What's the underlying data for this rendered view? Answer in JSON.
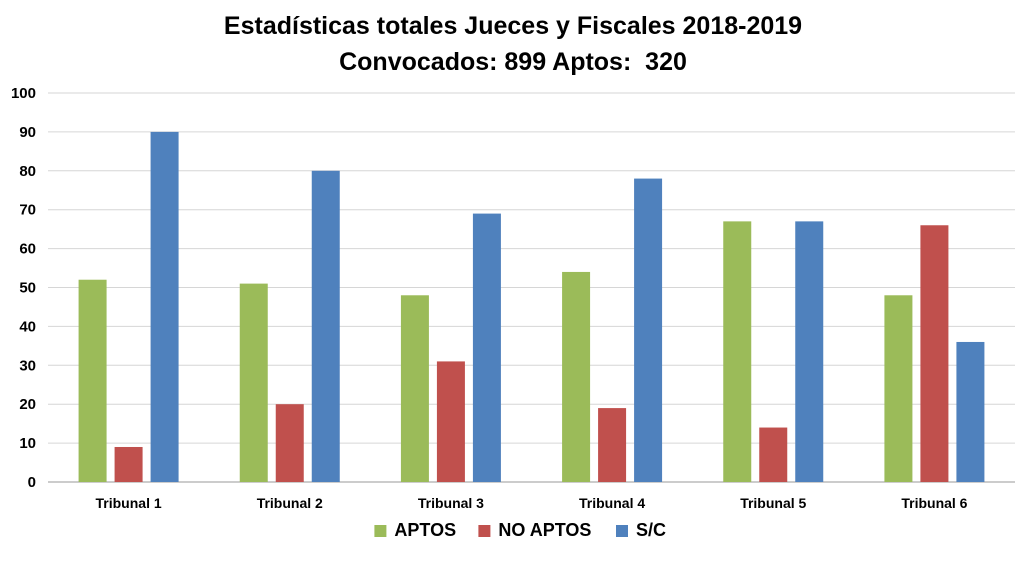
{
  "chart_data": {
    "type": "bar",
    "title": "Estadísticas totales Jueces y Fiscales 2018-2019",
    "subtitle": "Convocados: 899 Aptos:  320",
    "xlabel": "",
    "ylabel": "",
    "ylim": [
      0,
      100
    ],
    "yticks": [
      0,
      10,
      20,
      30,
      40,
      50,
      60,
      70,
      80,
      90,
      100
    ],
    "grid": true,
    "legend_position": "bottom",
    "categories": [
      "Tribunal 1",
      "Tribunal 2",
      "Tribunal 3",
      "Tribunal 4",
      "Tribunal 5",
      "Tribunal 6"
    ],
    "series": [
      {
        "name": "APTOS",
        "color": "#9BBB59",
        "values": [
          52,
          51,
          48,
          54,
          67,
          48
        ]
      },
      {
        "name": "NO APTOS",
        "color": "#C0504D",
        "values": [
          9,
          20,
          31,
          19,
          14,
          66
        ]
      },
      {
        "name": "S/C",
        "color": "#4F81BD",
        "values": [
          90,
          80,
          69,
          78,
          67,
          36
        ]
      }
    ]
  }
}
